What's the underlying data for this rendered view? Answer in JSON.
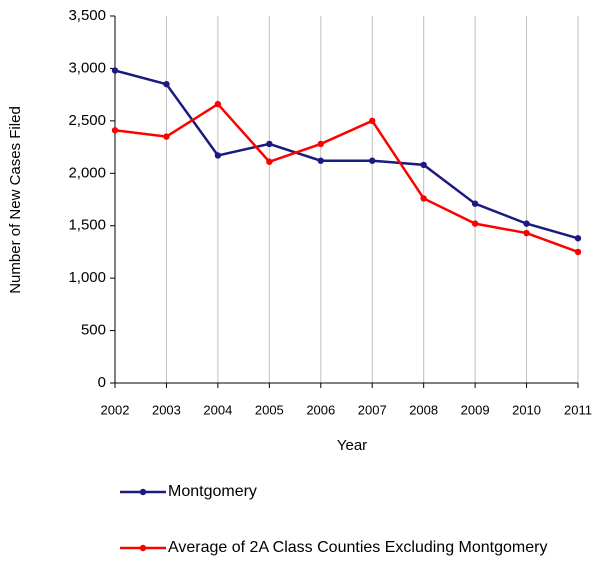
{
  "chart_data": {
    "type": "line",
    "x_label": "Year",
    "y_label": "Number of New Cases Filed",
    "categories": [
      "2002",
      "2003",
      "2004",
      "2005",
      "2006",
      "2007",
      "2008",
      "2009",
      "2010",
      "2011"
    ],
    "series": [
      {
        "name": "Montgomery",
        "color": "#1a1a80",
        "values": [
          2980,
          2850,
          2170,
          2280,
          2120,
          2120,
          2080,
          1710,
          1520,
          1380
        ]
      },
      {
        "name": "Average of 2A Class Counties Excluding Montgomery",
        "color": "#ff0000",
        "values": [
          2410,
          2350,
          2660,
          2110,
          2280,
          2500,
          1760,
          1520,
          1430,
          1250
        ]
      }
    ],
    "ylim": [
      0,
      3500
    ],
    "yticks": [
      0,
      500,
      {
        "value": 1000,
        "label": "1,000"
      },
      {
        "value": 1500,
        "label": "1,500"
      },
      {
        "value": 2000,
        "label": "2,000"
      },
      {
        "value": 2500,
        "label": "2,500"
      },
      {
        "value": 3000,
        "label": "3,000"
      },
      {
        "value": 3500,
        "label": "3,500"
      }
    ],
    "grid": "x",
    "legend": "bottom"
  }
}
